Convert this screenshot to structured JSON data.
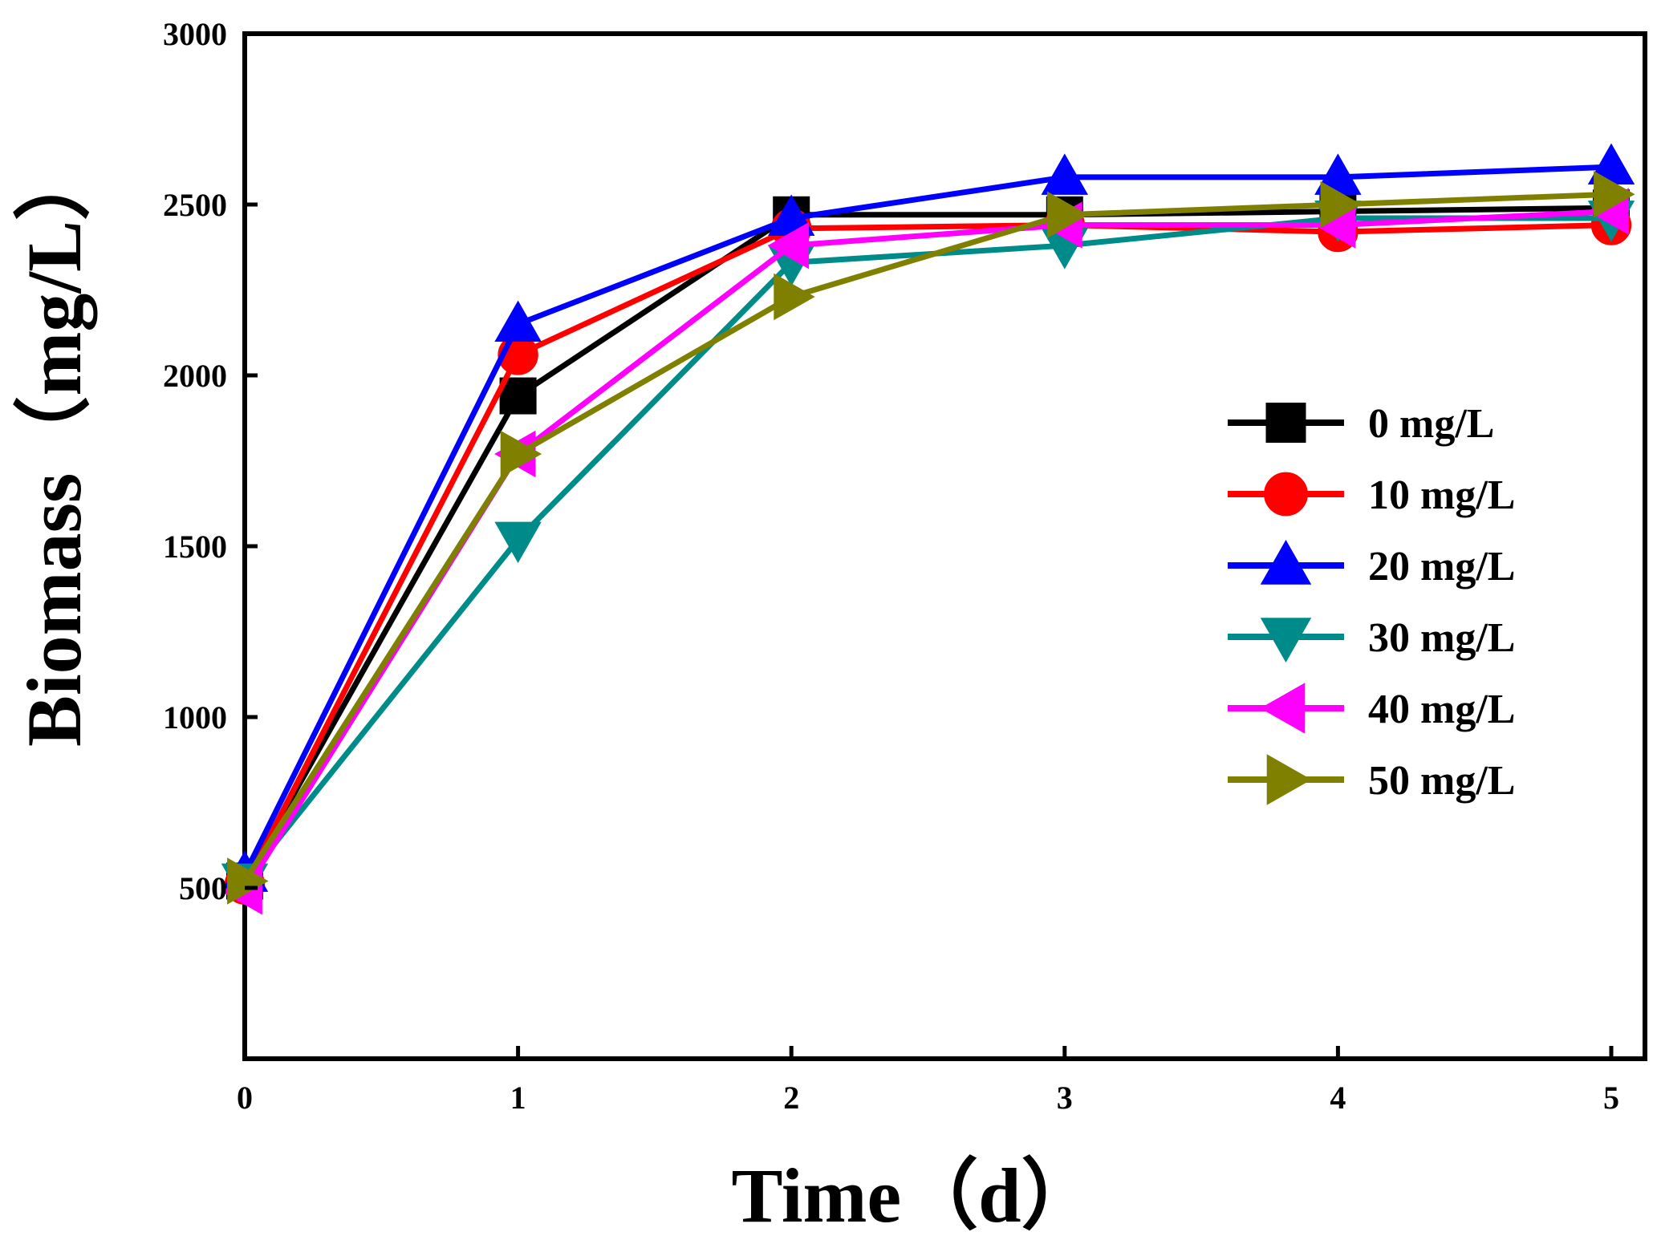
{
  "chart_data": {
    "type": "line",
    "title": "",
    "xlabel": "Time（d）",
    "ylabel": "Biomass（mg/L）",
    "x": [
      0,
      1,
      2,
      3,
      4,
      5
    ],
    "xlim": [
      0,
      5
    ],
    "ylim": [
      0,
      3000
    ],
    "xticks": [
      0,
      1,
      2,
      3,
      4,
      5
    ],
    "yticks": [
      500,
      1000,
      1500,
      2000,
      2500,
      3000
    ],
    "xtick_labels": [
      "0",
      "1",
      "2",
      "3",
      "4",
      "5"
    ],
    "ytick_labels": [
      "500",
      "1000",
      "1500",
      "2000",
      "2500",
      "3000"
    ],
    "grid": false,
    "legend_position": "right-middle",
    "series": [
      {
        "name": "0 mg/L",
        "color": "#000000",
        "marker": "square",
        "values": [
          520,
          1940,
          2470,
          2470,
          2480,
          2490
        ]
      },
      {
        "name": "10 mg/L",
        "color": "#ff0000",
        "marker": "circle",
        "values": [
          510,
          2060,
          2430,
          2440,
          2420,
          2440
        ]
      },
      {
        "name": "20 mg/L",
        "color": "#0000ff",
        "marker": "triangle-up",
        "values": [
          540,
          2150,
          2460,
          2580,
          2580,
          2610
        ]
      },
      {
        "name": "30 mg/L",
        "color": "#008b8b",
        "marker": "triangle-down",
        "values": [
          520,
          1520,
          2330,
          2380,
          2460,
          2460
        ]
      },
      {
        "name": "40 mg/L",
        "color": "#ff00ff",
        "marker": "triangle-left",
        "values": [
          490,
          1770,
          2380,
          2440,
          2440,
          2480
        ]
      },
      {
        "name": "50 mg/L",
        "color": "#808000",
        "marker": "triangle-right",
        "values": [
          520,
          1770,
          2230,
          2470,
          2500,
          2530
        ]
      }
    ]
  }
}
